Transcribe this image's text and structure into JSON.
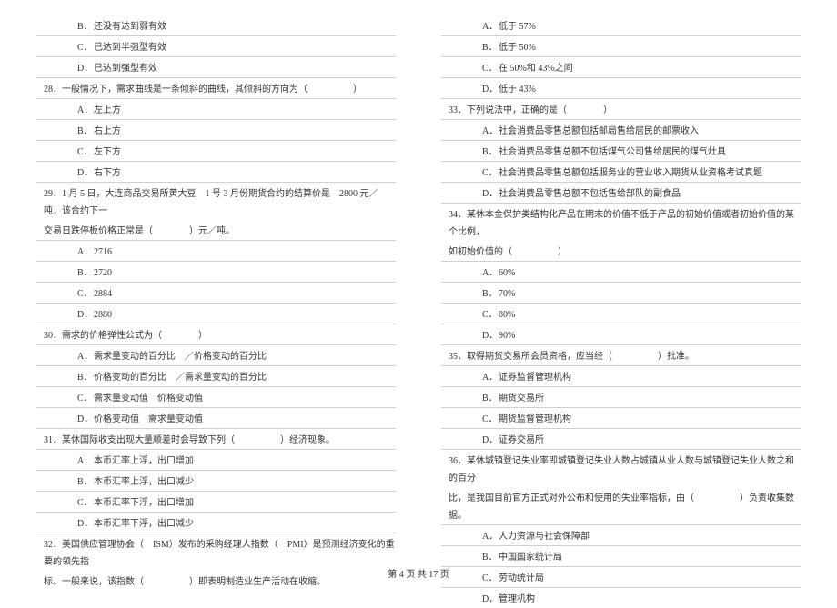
{
  "left": {
    "pre_options": [
      {
        "label": "B．",
        "text": "还没有达到弱有效"
      },
      {
        "label": "C．",
        "text": "已达到半强型有效"
      },
      {
        "label": "D．",
        "text": "已达到强型有效"
      }
    ],
    "q28": {
      "num": "28．",
      "text": "一般情况下，需求曲线是一条倾斜的曲线，其倾斜的方向为（　　　　　）"
    },
    "q28_opts": [
      {
        "label": "A．",
        "text": "左上方"
      },
      {
        "label": "B．",
        "text": "右上方"
      },
      {
        "label": "C．",
        "text": "左下方"
      },
      {
        "label": "D．",
        "text": "右下方"
      }
    ],
    "q29_line1": {
      "num": "29．",
      "text1": "1 月 5 日，大连商品交易所黄大豆",
      "text2": "1 号 3 月份期货合约的结算价是",
      "text3": "2800 元／吨，该合约下一"
    },
    "q29_line2": "交易日跌停板价格正常是（　　　　）元／吨。",
    "q29_opts": [
      {
        "label": "A．",
        "text": "2716"
      },
      {
        "label": "B．",
        "text": "2720"
      },
      {
        "label": "C．",
        "text": "2884"
      },
      {
        "label": "D．",
        "text": "2880"
      }
    ],
    "q30": {
      "num": "30．",
      "text": "需求的价格弹性公式为（　　　　）"
    },
    "q30_opts": [
      {
        "label": "A．",
        "text": "需求量变动的百分比　／价格变动的百分比"
      },
      {
        "label": "B．",
        "text": "价格变动的百分比　／需求量变动的百分比"
      },
      {
        "label": "C．",
        "text": "需求量变动值　价格变动值"
      },
      {
        "label": "D．",
        "text": "价格变动值　需求量变动值"
      }
    ],
    "q31": {
      "num": "31．",
      "text": "某休国际收支出现大量顺差时会导致下列（　　　　　）经济现象。"
    },
    "q31_opts": [
      {
        "label": "A．",
        "text": "本币汇率上浮，出口增加"
      },
      {
        "label": "B．",
        "text": "本币汇率上浮，出口减少"
      },
      {
        "label": "C．",
        "text": "本币汇率下浮，出口增加"
      },
      {
        "label": "D．",
        "text": "本币汇率下浮，出口减少"
      }
    ],
    "q32_line1": {
      "num": "32．",
      "text1": "美国供应管理协会（",
      "text2": "ISM）发布的采购经理人指数（",
      "text3": "PMI）是预测经济变化的重要的领先指"
    },
    "q32_line2": "标。一般来说，该指数（　　　　　）即表明制造业生产活动在收缩。"
  },
  "right": {
    "q32_opts": [
      {
        "label": "A．",
        "text": "低于 57%"
      },
      {
        "label": "B．",
        "text": "低于 50%"
      },
      {
        "label": "C．",
        "text": "在 50%和 43%之间"
      },
      {
        "label": "D．",
        "text": "低于 43%"
      }
    ],
    "q33": {
      "num": "33．",
      "text": "下列说法中，正确的是（　　　　）"
    },
    "q33_opts": [
      {
        "label": "A．",
        "text": "社会消费品零售总额包括邮局售给居民的邮票收入"
      },
      {
        "label": "B．",
        "text": "社会消费品零售总额不包括煤气公司售给居民的煤气灶具"
      },
      {
        "label": "C．",
        "text": "社会消费品零售总额包括服务业的营业收入期货从业资格考试真题"
      },
      {
        "label": "D．",
        "text": "社会消费品零售总额不包括售给部队的副食品"
      }
    ],
    "q34_line1": {
      "num": "34．",
      "text": "某休本金保护类结构化产品在期末的价值不低于产品的初始价值或者初始价值的某个比例，"
    },
    "q34_line2": "如初始价值的（　　　　　）",
    "q34_opts": [
      {
        "label": "A．",
        "text": "60%"
      },
      {
        "label": "B．",
        "text": "70%"
      },
      {
        "label": "C．",
        "text": "80%"
      },
      {
        "label": "D．",
        "text": "90%"
      }
    ],
    "q35": {
      "num": "35．",
      "text": "取得期货交易所会员资格，应当经（　　　　　）批准。"
    },
    "q35_opts": [
      {
        "label": "A．",
        "text": "证券监督管理机构"
      },
      {
        "label": "B．",
        "text": "期货交易所"
      },
      {
        "label": "C．",
        "text": "期货监督管理机构"
      },
      {
        "label": "D．",
        "text": "证券交易所"
      }
    ],
    "q36_line1": {
      "num": "36．",
      "text": "某休城镇登记失业率即城镇登记失业人数占城镇从业人数与城镇登记失业人数之和的百分"
    },
    "q36_line2": "比，是我国目前官方正式对外公布和使用的失业率指标，由（　　　　　）负责收集数据。",
    "q36_opts": [
      {
        "label": "A．",
        "text": "人力资源与社会保障部"
      },
      {
        "label": "B．",
        "text": "中国国家统计局"
      },
      {
        "label": "C．",
        "text": "劳动统计局"
      },
      {
        "label": "D．",
        "text": "管理机构"
      }
    ]
  },
  "footer": {
    "prefix": "第 ",
    "page": "4",
    "mid": " 页 共 ",
    "total": "17",
    "suffix": " 页"
  }
}
